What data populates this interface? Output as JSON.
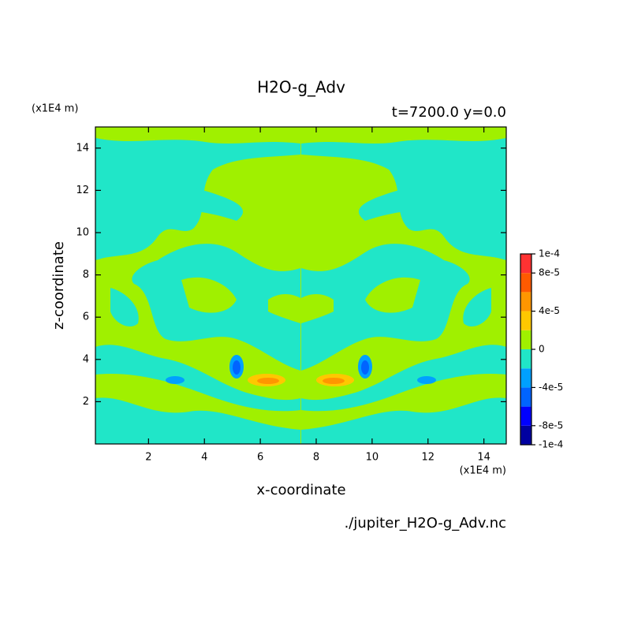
{
  "chart_data": {
    "type": "contour",
    "title": "H2O-g_Adv",
    "subtitle": "t=7200.0 y=0.0",
    "xlabel": "x-coordinate",
    "ylabel": "z-coordinate",
    "x_unit": "(x1E4 m)",
    "y_unit": "(x1E4 m)",
    "source": "./jupiter_H2O-g_Adv.nc",
    "xlim": [
      0.1,
      14.8
    ],
    "ylim": [
      0,
      15
    ],
    "xticks": [
      2,
      4,
      6,
      8,
      10,
      12,
      14
    ],
    "yticks": [
      2,
      4,
      6,
      8,
      10,
      12,
      14
    ],
    "clim": [
      -0.0001,
      0.0001
    ],
    "cticks": [
      {
        "value": -0.0001,
        "label": "-1e-4"
      },
      {
        "value": -8e-05,
        "label": "-8e-5"
      },
      {
        "value": -4e-05,
        "label": "-4e-5"
      },
      0,
      {
        "value": 4e-05,
        "label": "4e-5"
      },
      {
        "value": 8e-05,
        "label": "8e-5"
      },
      {
        "value": 0.0001,
        "label": "1e-4"
      }
    ],
    "colors": [
      "#0000a0",
      "#0000ff",
      "#0064ff",
      "#00a0ff",
      "#20e6c8",
      "#a0f000",
      "#ffc800",
      "#ff9600",
      "#ff5a00",
      "#ff3232"
    ]
  }
}
